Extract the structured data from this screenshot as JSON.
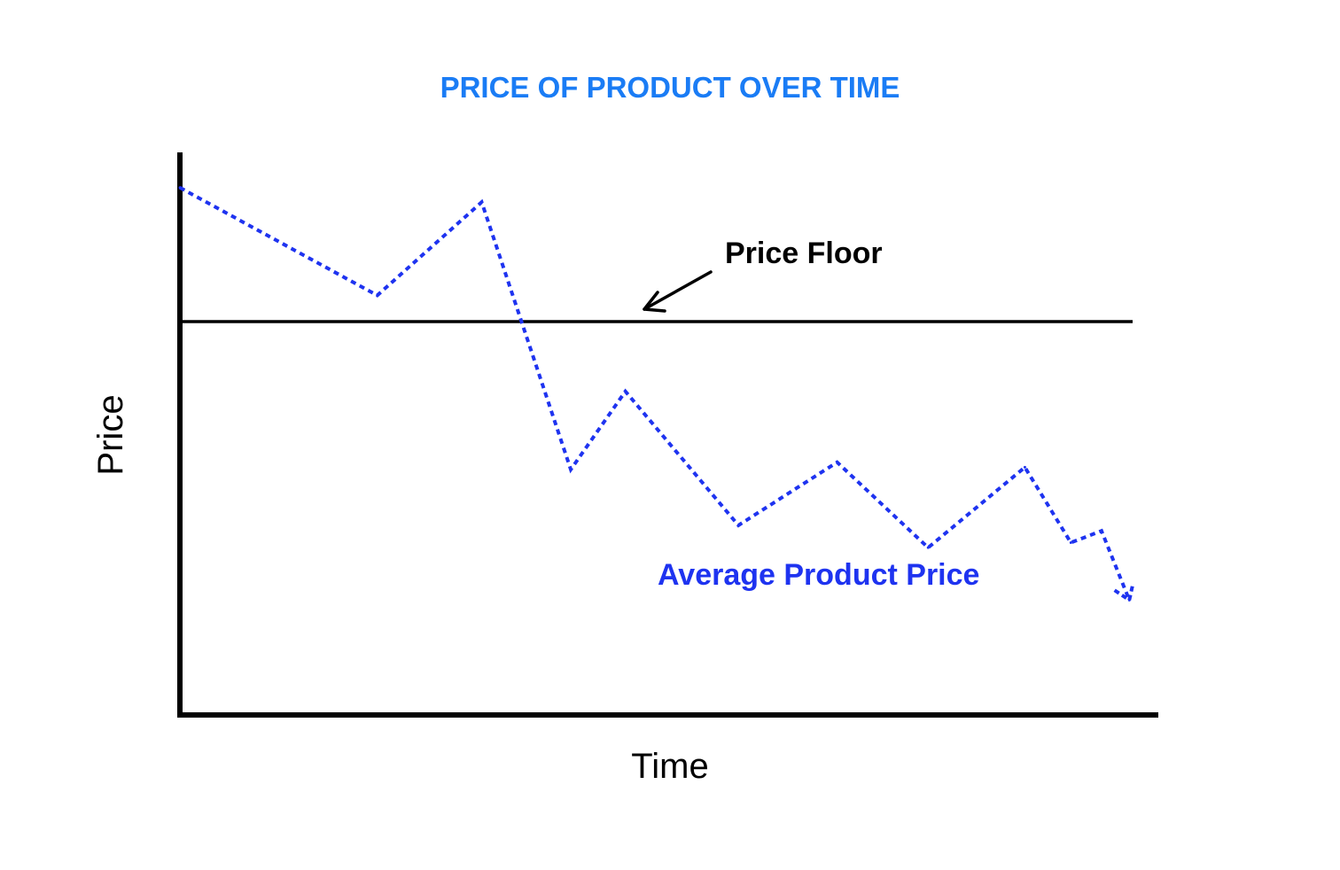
{
  "chart_data": {
    "type": "line",
    "title": "PRICE OF PRODUCT OVER TIME",
    "xlabel": "Time",
    "ylabel": "Price",
    "xlim": [
      0,
      100
    ],
    "ylim": [
      0,
      100
    ],
    "grid": false,
    "axis_ticks": false,
    "price_floor": {
      "label": "Price Floor",
      "value": 70
    },
    "series": [
      {
        "name": "Average Product Price",
        "style": "dotted",
        "x": [
          0,
          20.6,
          31.5,
          40.8,
          46.5,
          58.3,
          68.6,
          78.1,
          88.2,
          93.0,
          96.2,
          99.1
        ],
        "y": [
          94,
          74.7,
          91.4,
          43.5,
          57.5,
          33.5,
          44.8,
          29.5,
          43.9,
          30.4,
          32.5,
          20.1
        ]
      }
    ],
    "colors": {
      "title": "#1a7cf5",
      "series": "#1e33f0",
      "axes": "#000000",
      "floor_line": "#000000",
      "annotation": "#000000"
    }
  }
}
